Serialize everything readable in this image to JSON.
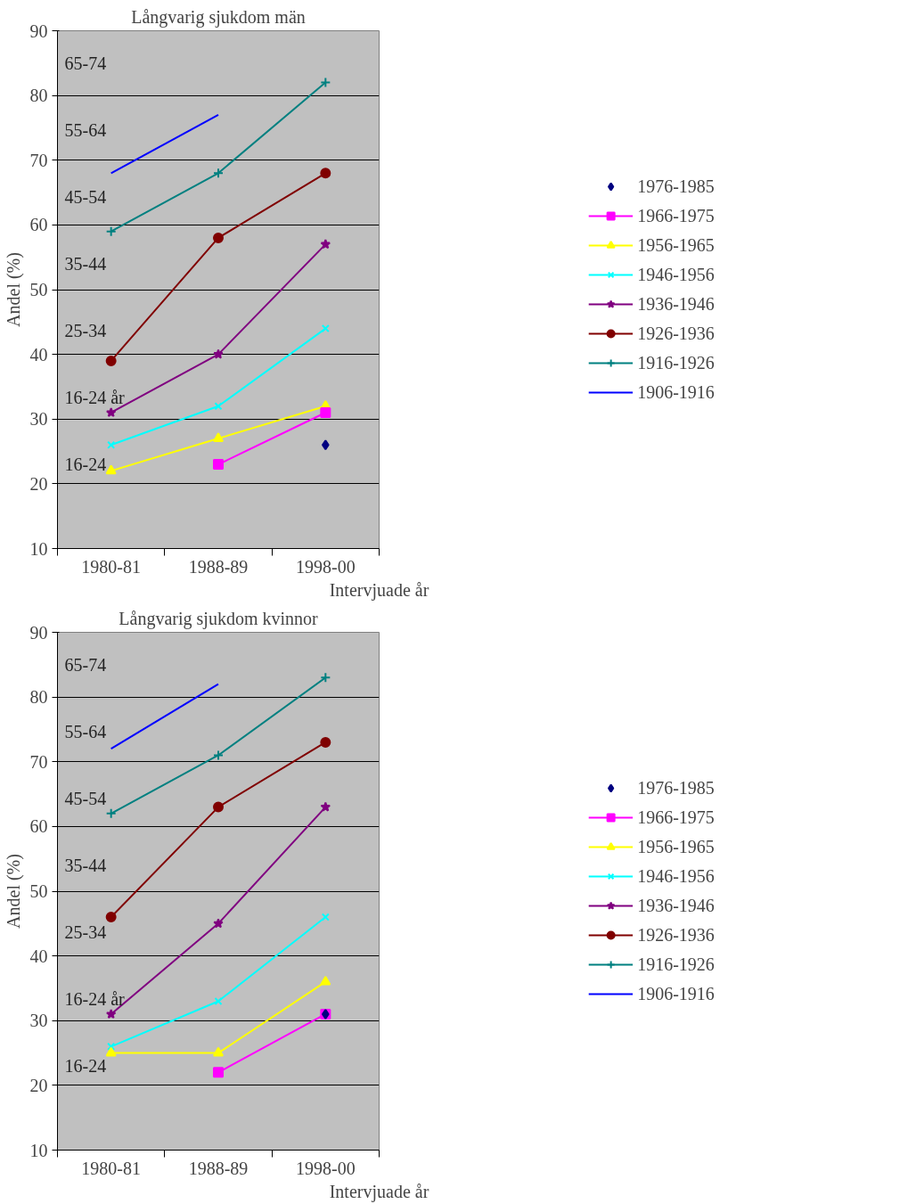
{
  "chart_data": [
    {
      "type": "line",
      "title": "Långvarig sjukdom män",
      "ylabel": "Andel (%)",
      "xlabel": "Intervjuade år",
      "categories": [
        "1980-81",
        "1988-89",
        "1998-00"
      ],
      "ylim": [
        10,
        90
      ],
      "yticks": [
        10,
        20,
        30,
        40,
        50,
        60,
        70,
        80,
        90
      ],
      "grid": "y",
      "legend": "right",
      "series": [
        {
          "name": "1976-1985",
          "color": "#000080",
          "marker": "diamond",
          "values": [
            null,
            null,
            26
          ]
        },
        {
          "name": "1966-1975",
          "color": "#ff00ff",
          "marker": "square",
          "values": [
            null,
            23,
            31
          ]
        },
        {
          "name": "1956-1965",
          "color": "#ffff00",
          "marker": "triangle",
          "values": [
            22,
            27,
            32
          ]
        },
        {
          "name": "1946-1956",
          "color": "#00ffff",
          "marker": "x",
          "values": [
            26,
            32,
            44
          ]
        },
        {
          "name": "1936-1946",
          "color": "#800080",
          "marker": "star",
          "values": [
            31,
            40,
            57
          ]
        },
        {
          "name": "1926-1936",
          "color": "#800000",
          "marker": "circle",
          "values": [
            39,
            58,
            68
          ]
        },
        {
          "name": "1916-1926",
          "color": "#008080",
          "marker": "cross",
          "values": [
            59,
            68,
            82
          ]
        },
        {
          "name": "1906-1916",
          "color": "#0000ff",
          "marker": "none",
          "values": [
            68,
            77,
            null
          ]
        }
      ],
      "annotations": [
        "65-74",
        "55-64",
        "45-54",
        "35-44",
        "25-34",
        "16-24 år",
        "16-24"
      ]
    },
    {
      "type": "line",
      "title": "Långvarig sjukdom kvinnor",
      "ylabel": "Andel (%)",
      "xlabel": "Intervjuade år",
      "categories": [
        "1980-81",
        "1988-89",
        "1998-00"
      ],
      "ylim": [
        10,
        90
      ],
      "yticks": [
        10,
        20,
        30,
        40,
        50,
        60,
        70,
        80,
        90
      ],
      "grid": "y",
      "legend": "right",
      "series": [
        {
          "name": "1976-1985",
          "color": "#000080",
          "marker": "diamond",
          "values": [
            null,
            null,
            31
          ]
        },
        {
          "name": "1966-1975",
          "color": "#ff00ff",
          "marker": "square",
          "values": [
            null,
            22,
            31
          ]
        },
        {
          "name": "1956-1965",
          "color": "#ffff00",
          "marker": "triangle",
          "values": [
            25,
            25,
            36
          ]
        },
        {
          "name": "1946-1956",
          "color": "#00ffff",
          "marker": "x",
          "values": [
            26,
            33,
            46
          ]
        },
        {
          "name": "1936-1946",
          "color": "#800080",
          "marker": "star",
          "values": [
            31,
            45,
            63
          ]
        },
        {
          "name": "1926-1936",
          "color": "#800000",
          "marker": "circle",
          "values": [
            46,
            63,
            73
          ]
        },
        {
          "name": "1916-1926",
          "color": "#008080",
          "marker": "cross",
          "values": [
            62,
            71,
            83
          ]
        },
        {
          "name": "1906-1916",
          "color": "#0000ff",
          "marker": "none",
          "values": [
            72,
            82,
            null
          ]
        }
      ],
      "annotations": [
        "65-74",
        "55-64",
        "45-54",
        "35-44",
        "25-34",
        "16-24 år",
        "16-24"
      ]
    }
  ]
}
